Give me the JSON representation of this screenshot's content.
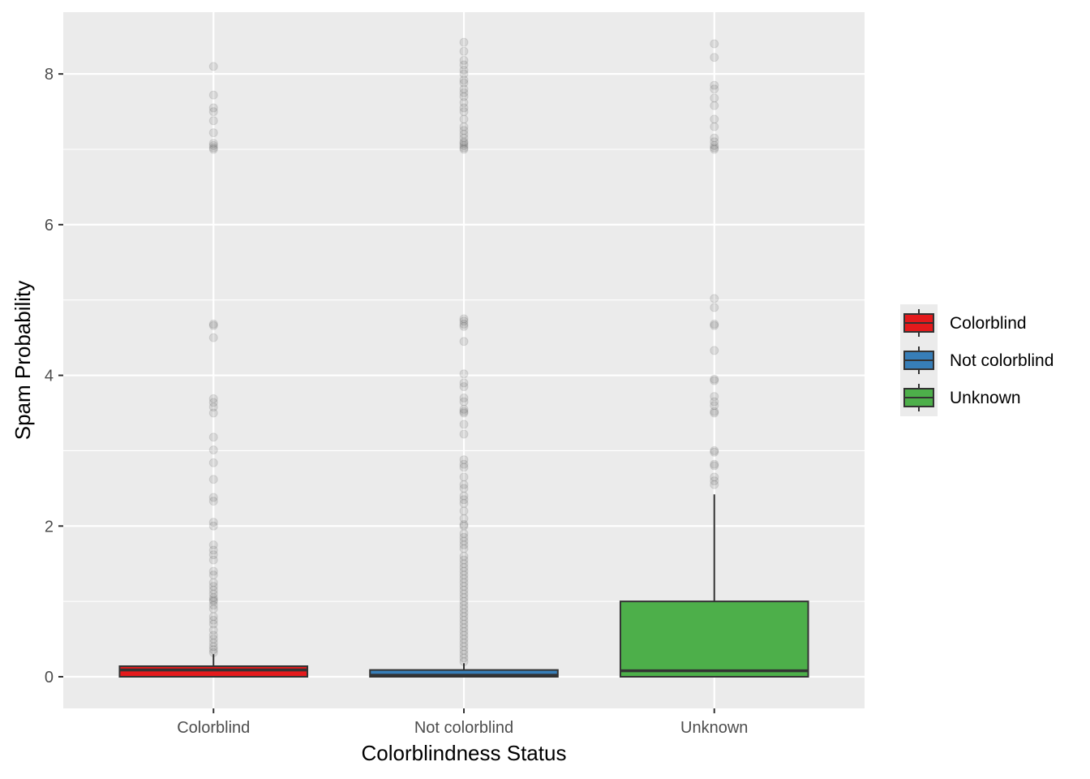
{
  "chart_data": {
    "type": "box",
    "title": "",
    "xlabel": "Colorblindness Status",
    "ylabel": "Spam Probability",
    "ylim": [
      -0.42,
      8.82
    ],
    "y_ticks": [
      0,
      2,
      4,
      6,
      8
    ],
    "y_tick_labels": [
      "0",
      "2",
      "4",
      "6",
      "8"
    ],
    "categories": [
      "Colorblind",
      "Not colorblind",
      "Unknown"
    ],
    "grid": true,
    "legend": {
      "position": "right",
      "entries": [
        {
          "label": "Colorblind",
          "color": "#e41a1c"
        },
        {
          "label": "Not colorblind",
          "color": "#377eb8"
        },
        {
          "label": "Unknown",
          "color": "#4daf4a"
        }
      ]
    },
    "series": [
      {
        "category": "Colorblind",
        "color": "#e41a1c",
        "min": 0,
        "q1": 0,
        "median": 0.09,
        "q3": 0.14,
        "max": 0.3,
        "outliers": [
          0.32,
          0.36,
          0.4,
          0.45,
          0.5,
          0.55,
          0.62,
          0.7,
          0.75,
          0.8,
          0.9,
          0.95,
          1.0,
          1.02,
          1.05,
          1.1,
          1.15,
          1.2,
          1.25,
          1.35,
          1.4,
          1.55,
          1.62,
          1.68,
          1.75,
          2.0,
          2.05,
          2.33,
          2.38,
          2.62,
          2.84,
          3.01,
          3.18,
          3.5,
          3.58,
          3.64,
          3.69,
          4.5,
          4.66,
          4.68,
          7.0,
          7.02,
          7.05,
          7.08,
          7.22,
          7.38,
          7.5,
          7.55,
          7.72,
          8.1
        ]
      },
      {
        "category": "Not colorblind",
        "color": "#377eb8",
        "min": 0,
        "q1": 0,
        "median": 0.02,
        "q3": 0.09,
        "max": 0.18,
        "outliers": [
          0.2,
          0.25,
          0.3,
          0.35,
          0.4,
          0.45,
          0.5,
          0.55,
          0.6,
          0.65,
          0.7,
          0.75,
          0.8,
          0.85,
          0.9,
          0.95,
          1.0,
          1.05,
          1.1,
          1.15,
          1.2,
          1.25,
          1.3,
          1.35,
          1.4,
          1.45,
          1.5,
          1.55,
          1.6,
          1.7,
          1.75,
          1.8,
          1.85,
          1.9,
          2.0,
          2.02,
          2.1,
          2.2,
          2.3,
          2.35,
          2.4,
          2.5,
          2.55,
          2.65,
          2.78,
          2.82,
          2.88,
          3.22,
          3.35,
          3.5,
          3.52,
          3.55,
          3.65,
          3.7,
          3.85,
          3.9,
          4.02,
          4.45,
          4.65,
          4.68,
          4.72,
          4.75,
          7.0,
          7.02,
          7.05,
          7.08,
          7.1,
          7.15,
          7.2,
          7.25,
          7.3,
          7.4,
          7.5,
          7.55,
          7.62,
          7.7,
          7.75,
          7.8,
          7.88,
          7.92,
          8.0,
          8.05,
          8.12,
          8.18,
          8.3,
          8.42
        ]
      },
      {
        "category": "Unknown",
        "color": "#4daf4a",
        "min": 0,
        "q1": 0,
        "median": 0.08,
        "q3": 1.0,
        "max": 2.42,
        "outliers": [
          2.55,
          2.6,
          2.65,
          2.8,
          2.82,
          2.98,
          3.0,
          3.5,
          3.52,
          3.6,
          3.65,
          3.72,
          3.93,
          3.95,
          4.33,
          4.66,
          4.68,
          4.9,
          5.02,
          7.0,
          7.02,
          7.05,
          7.1,
          7.15,
          7.3,
          7.4,
          7.58,
          7.68,
          7.8,
          7.85,
          8.22,
          8.4
        ]
      }
    ]
  }
}
